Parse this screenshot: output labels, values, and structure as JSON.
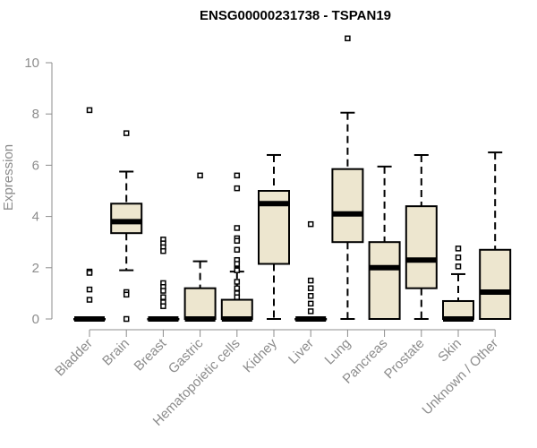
{
  "chart_data": {
    "type": "box",
    "title": "ENSG00000231738 - TSPAN19",
    "ylabel": "Expression",
    "ylim": [
      0,
      10.5
    ],
    "yticks": [
      0,
      2,
      4,
      6,
      8,
      10
    ],
    "grid": false,
    "box_fill": "#ede6cf",
    "stroke_color": "#000000",
    "axis_color": "#8c8c8c",
    "categories": [
      "Bladder",
      "Brain",
      "Breast",
      "Gastric",
      "Hematopoietic cells",
      "Kidney",
      "Liver",
      "Lung",
      "Pancreas",
      "Prostate",
      "Skin",
      "Unknown / Other"
    ],
    "boxes": [
      {
        "min": 0,
        "q1": 0,
        "median": 0,
        "q3": 0,
        "max": 0,
        "outliers": [
          8.15,
          1.85,
          1.8,
          1.15,
          0.75
        ]
      },
      {
        "min": 1.9,
        "q1": 3.35,
        "median": 3.8,
        "q3": 4.5,
        "max": 5.75,
        "outliers": [
          7.25,
          1.05,
          0.95,
          0
        ]
      },
      {
        "min": 0,
        "q1": 0,
        "median": 0,
        "q3": 0,
        "max": 0,
        "outliers": [
          3.1,
          2.95,
          2.8,
          2.65,
          1.4,
          1.25,
          1.1,
          0.85,
          0.65,
          0.5
        ]
      },
      {
        "min": 0,
        "q1": 0,
        "median": 0,
        "q3": 1.2,
        "max": 2.25,
        "outliers": [
          5.6
        ]
      },
      {
        "min": 0,
        "q1": 0,
        "median": 0,
        "q3": 0.75,
        "max": 1.85,
        "outliers": [
          5.6,
          5.1,
          3.55,
          3.15,
          3.05,
          2.7,
          2.3,
          2.15,
          1.95,
          1.9,
          1.45,
          1.2,
          1.0,
          0.85
        ]
      },
      {
        "min": 0,
        "q1": 2.15,
        "median": 4.5,
        "q3": 5.0,
        "max": 6.4,
        "outliers": []
      },
      {
        "min": 0,
        "q1": 0,
        "median": 0,
        "q3": 0,
        "max": 0,
        "outliers": [
          3.7,
          1.5,
          1.2,
          0.9,
          0.6,
          0.3
        ]
      },
      {
        "min": 0,
        "q1": 3.0,
        "median": 4.1,
        "q3": 5.85,
        "max": 8.05,
        "outliers": [
          10.95
        ]
      },
      {
        "min": 0,
        "q1": 0,
        "median": 2.0,
        "q3": 3.0,
        "max": 5.95,
        "outliers": []
      },
      {
        "min": 0,
        "q1": 1.2,
        "median": 2.3,
        "q3": 4.4,
        "max": 6.4,
        "outliers": []
      },
      {
        "min": 0,
        "q1": 0,
        "median": 0,
        "q3": 0.7,
        "max": 1.75,
        "outliers": [
          2.75,
          2.4,
          2.05
        ]
      },
      {
        "min": 0,
        "q1": 0,
        "median": 1.05,
        "q3": 2.7,
        "max": 6.5,
        "outliers": []
      }
    ]
  }
}
